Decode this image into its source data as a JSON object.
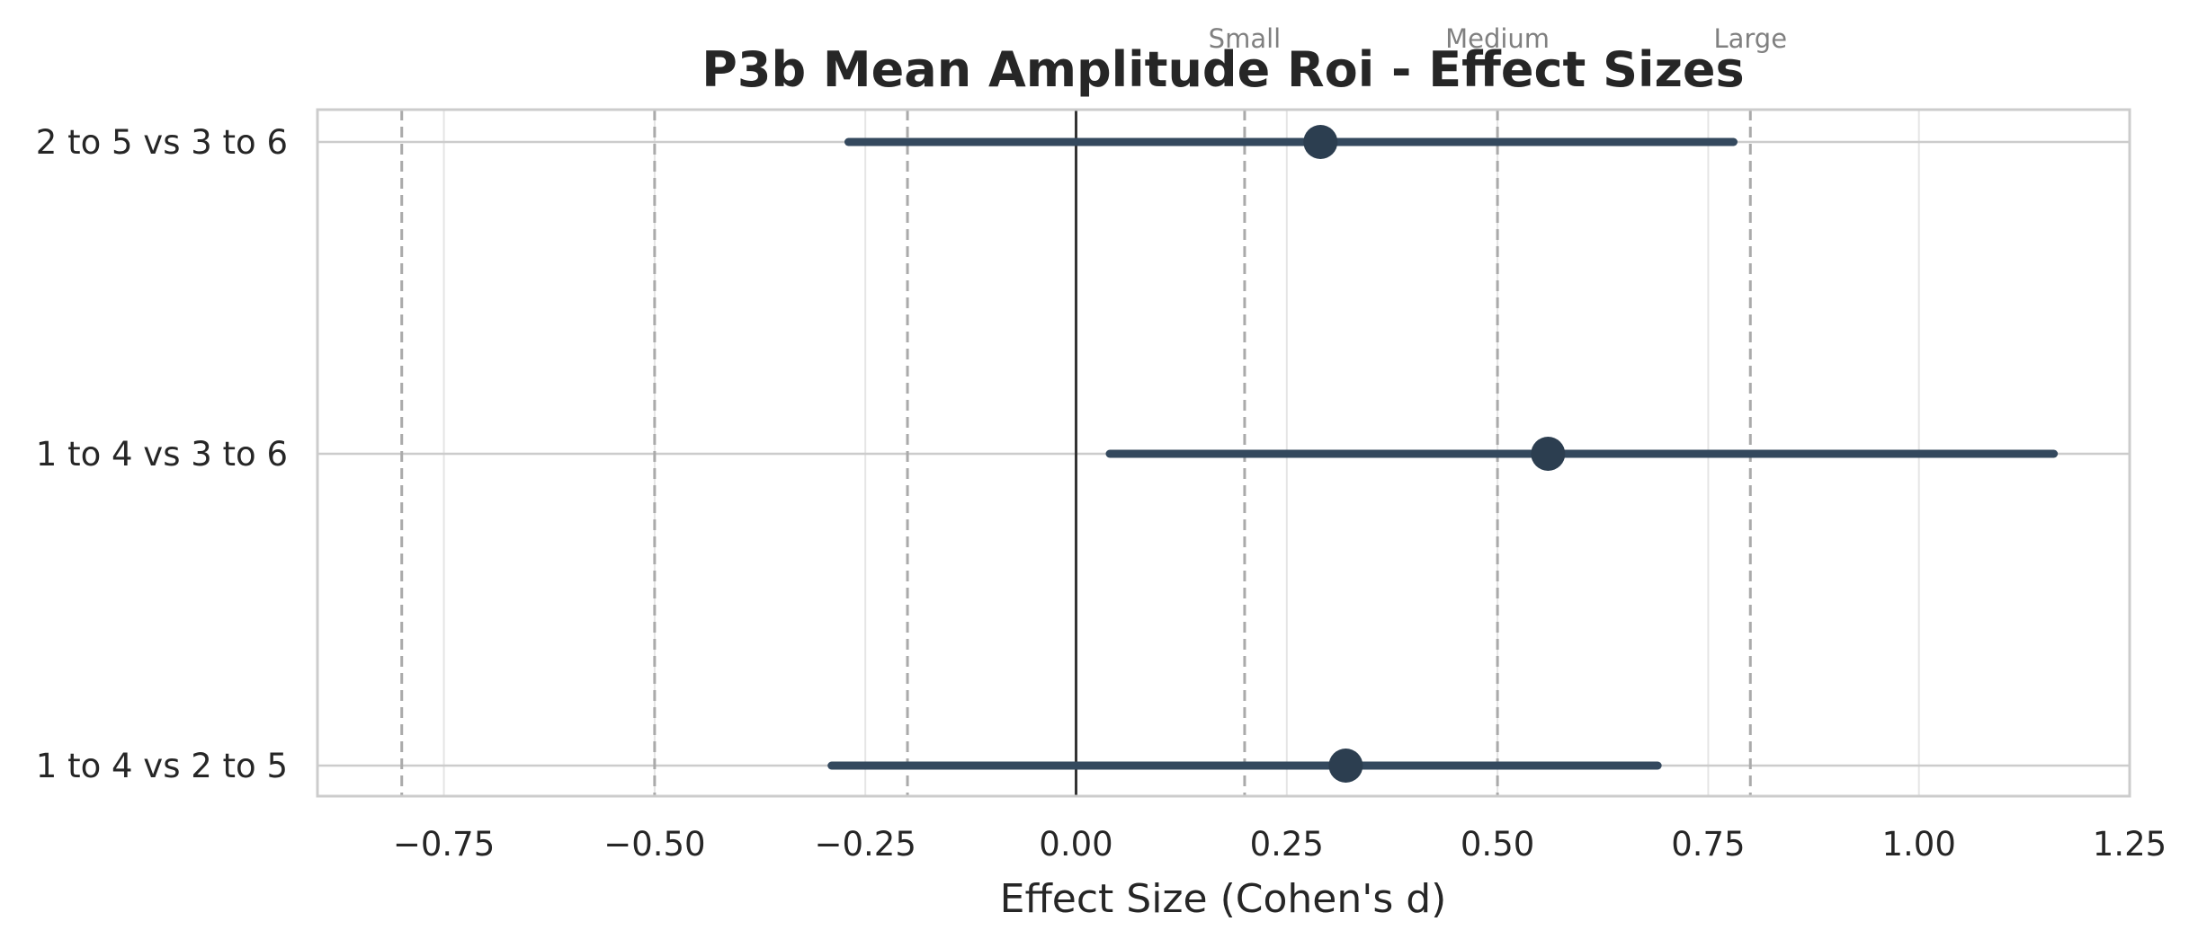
{
  "chart_data": {
    "type": "forest",
    "title": "P3b Mean Amplitude Roi - Effect Sizes",
    "xlabel": "Effect Size (Cohen's d)",
    "ylabel": "",
    "xlim": [
      -0.9,
      1.25
    ],
    "xticks": [
      -0.75,
      -0.5,
      -0.25,
      0.0,
      0.25,
      0.5,
      0.75,
      1.0,
      1.25
    ],
    "xtick_labels": [
      "−0.75",
      "−0.50",
      "−0.25",
      "0.00",
      "0.25",
      "0.50",
      "0.75",
      "1.00",
      "1.25"
    ],
    "grid": true,
    "comparisons": [
      {
        "label": "2 to 5 vs 3 to 6",
        "d": 0.29,
        "ci_low": -0.27,
        "ci_high": 0.78
      },
      {
        "label": "1 to 4 vs 3 to 6",
        "d": 0.56,
        "ci_low": 0.04,
        "ci_high": 1.16
      },
      {
        "label": "1 to 4 vs 2 to 5",
        "d": 0.32,
        "ci_low": -0.29,
        "ci_high": 0.69
      }
    ],
    "reference_lines": {
      "zero": 0.0,
      "thresholds": [
        -0.8,
        -0.5,
        -0.2,
        0.2,
        0.5,
        0.8
      ],
      "annotations": [
        {
          "label": "Small",
          "x": 0.2
        },
        {
          "label": "Medium",
          "x": 0.5
        },
        {
          "label": "Large",
          "x": 0.8
        }
      ]
    },
    "colors": {
      "point": "#2c3e50",
      "ci_line": "#34495e",
      "zero_line": "#333333",
      "threshold_line": "#aaaaaa",
      "grid": "#e5e5e5",
      "frame": "#cccccc",
      "annotation_text": "#808080"
    }
  }
}
